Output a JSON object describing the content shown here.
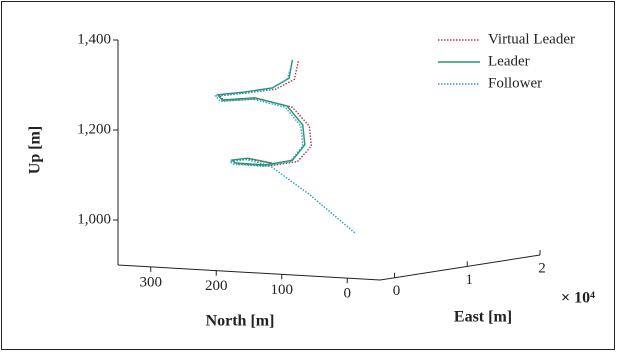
{
  "chart_data": {
    "type": "line3d",
    "xlabel": "North [m]",
    "xlim": [
      -50,
      350
    ],
    "xticks": [
      300,
      200,
      100,
      0
    ],
    "ylabel": "East [m]",
    "ylim": [
      -0.2,
      2
    ],
    "yticks": [
      0,
      1,
      2
    ],
    "y_multiplier": "× 10⁴",
    "zlabel": "Up [m]",
    "zlim": [
      900,
      1400
    ],
    "zticks": [
      {
        "value": 1000,
        "label": "1,000"
      },
      {
        "value": 1200,
        "label": "1,200"
      },
      {
        "value": 1400,
        "label": "1,400"
      }
    ],
    "legend": "upper right",
    "series": [
      {
        "name": "Virtual Leader",
        "color": "#b8324a",
        "linestyle": "dotted",
        "x": [
          97,
          103,
          131,
          174,
          217,
          210,
          158,
          106,
          80,
          77,
          98,
          143,
          191,
          195,
          170,
          132
        ],
        "y": [
          0,
          0,
          0,
          0,
          0,
          0,
          0,
          0,
          0,
          0,
          0,
          0,
          0,
          0,
          0,
          0
        ],
        "z": [
          1369,
          1328,
          1304,
          1292,
          1282,
          1271,
          1280,
          1266,
          1226,
          1182,
          1146,
          1132,
          1133,
          1139,
          1145,
          1137
        ]
      },
      {
        "name": "Leader",
        "color": "#1f9a6a",
        "linestyle": "solid",
        "x": [
          106,
          111,
          137,
          178,
          220,
          213,
          163,
          114,
          90,
          87,
          106,
          148,
          194,
          198,
          174,
          137
        ],
        "y": [
          0,
          0,
          0,
          0,
          0,
          0,
          0,
          0,
          0,
          0,
          0,
          0,
          0,
          0,
          0,
          0
        ],
        "z": [
          1371,
          1330,
          1306,
          1294,
          1284,
          1273,
          1282,
          1268,
          1228,
          1184,
          1148,
          1134,
          1135,
          1141,
          1147,
          1139
        ]
      },
      {
        "name": "Follower",
        "color": "#2a9cc8",
        "linestyle": "dotted",
        "x": [
          109,
          114,
          140,
          181,
          223,
          216,
          166,
          117,
          93,
          90,
          109,
          151,
          197,
          201,
          177,
          140,
          79,
          10
        ],
        "y": [
          0,
          0,
          0,
          0,
          0,
          0,
          0,
          0,
          0,
          0,
          0,
          0,
          0,
          0,
          0,
          0,
          0,
          0
        ],
        "z": [
          1350,
          1327,
          1303,
          1291,
          1281,
          1270,
          1279,
          1265,
          1225,
          1181,
          1145,
          1131,
          1132,
          1138,
          1144,
          1133,
          1073,
          994
        ]
      }
    ]
  }
}
